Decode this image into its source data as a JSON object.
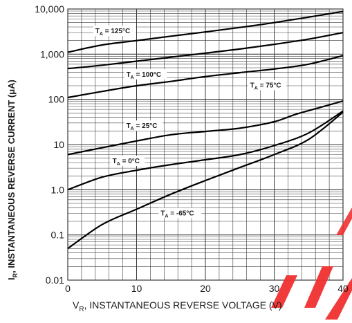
{
  "chart_data": {
    "type": "line",
    "xlabel": "V",
    "xlabel_sub": "R",
    "xlabel_rest": ", INSTANTANEOUS REVERSE VOLTAGE (V)",
    "ylabel": "I",
    "ylabel_sub": "R",
    "ylabel_rest": ", INSTANTANEOUS REVERSE CURRENT (μA)",
    "xlim": [
      0,
      40
    ],
    "ylim": [
      0.01,
      10000
    ],
    "yscale": "log",
    "x_ticks": [
      0,
      10,
      20,
      30,
      40
    ],
    "x_tick_labels": [
      "0",
      "10",
      "20",
      "30",
      "40"
    ],
    "y_ticks": [
      0.01,
      0.1,
      1,
      10,
      100,
      1000,
      10000
    ],
    "y_tick_labels": [
      "0.01",
      "0.1",
      "1.0",
      "10",
      "100",
      "1,000",
      "10,000"
    ],
    "grid": true,
    "series": [
      {
        "name": "T_A = 125°C",
        "label_prefix": "T",
        "label_sub": "A",
        "label_rest": " = 125°C",
        "label_x": 4,
        "label_y": 3000,
        "x": [
          0,
          5,
          10,
          15,
          20,
          25,
          30,
          35,
          40
        ],
        "y": [
          1100,
          1600,
          2000,
          2500,
          3100,
          3900,
          5000,
          6600,
          8800
        ]
      },
      {
        "name": "T_A = 100°C",
        "label_prefix": "T",
        "label_sub": "A",
        "label_rest": " = 100°C",
        "label_x": 8.5,
        "label_y": 330,
        "x": [
          0,
          5,
          10,
          15,
          20,
          25,
          30,
          35,
          40
        ],
        "y": [
          480,
          570,
          700,
          860,
          1050,
          1300,
          1650,
          2150,
          3000
        ]
      },
      {
        "name": "T_A = 75°C",
        "label_prefix": "T",
        "label_sub": "A",
        "label_rest": " = 75°C",
        "label_x": 26.5,
        "label_y": 190,
        "x": [
          0,
          5,
          10,
          15,
          20,
          25,
          30,
          35,
          40
        ],
        "y": [
          110,
          150,
          200,
          250,
          320,
          390,
          470,
          600,
          930
        ]
      },
      {
        "name": "T_A = 25°C",
        "label_prefix": "T",
        "label_sub": "A",
        "label_rest": " = 25°C",
        "label_x": 8.5,
        "label_y": 24,
        "x": [
          0,
          5,
          10,
          15,
          20,
          25,
          30,
          33,
          36,
          40
        ],
        "y": [
          6,
          8.5,
          12,
          16.5,
          19.5,
          23,
          32,
          46,
          62,
          92
        ]
      },
      {
        "name": "T_A = 0°C",
        "label_prefix": "T",
        "label_sub": "A",
        "label_rest": " = 0°C",
        "label_x": 6.5,
        "label_y": 4.0,
        "x": [
          0,
          5,
          10,
          15,
          20,
          25,
          30,
          35,
          40
        ],
        "y": [
          1.0,
          1.9,
          2.7,
          3.6,
          4.6,
          6.0,
          9.5,
          18,
          55
        ]
      },
      {
        "name": "T_A = -65°C",
        "label_prefix": "T",
        "label_sub": "A",
        "label_rest": " = -65°C",
        "label_x": 13.5,
        "label_y": 0.28,
        "x": [
          0,
          5,
          10,
          15,
          20,
          25,
          30,
          35,
          40
        ],
        "y": [
          0.05,
          0.17,
          0.37,
          0.8,
          1.6,
          3.1,
          6.0,
          13,
          52
        ]
      }
    ]
  },
  "colors": {
    "curve": "#000000",
    "grid": "#3a3a3a",
    "watermark": "#f03030"
  }
}
